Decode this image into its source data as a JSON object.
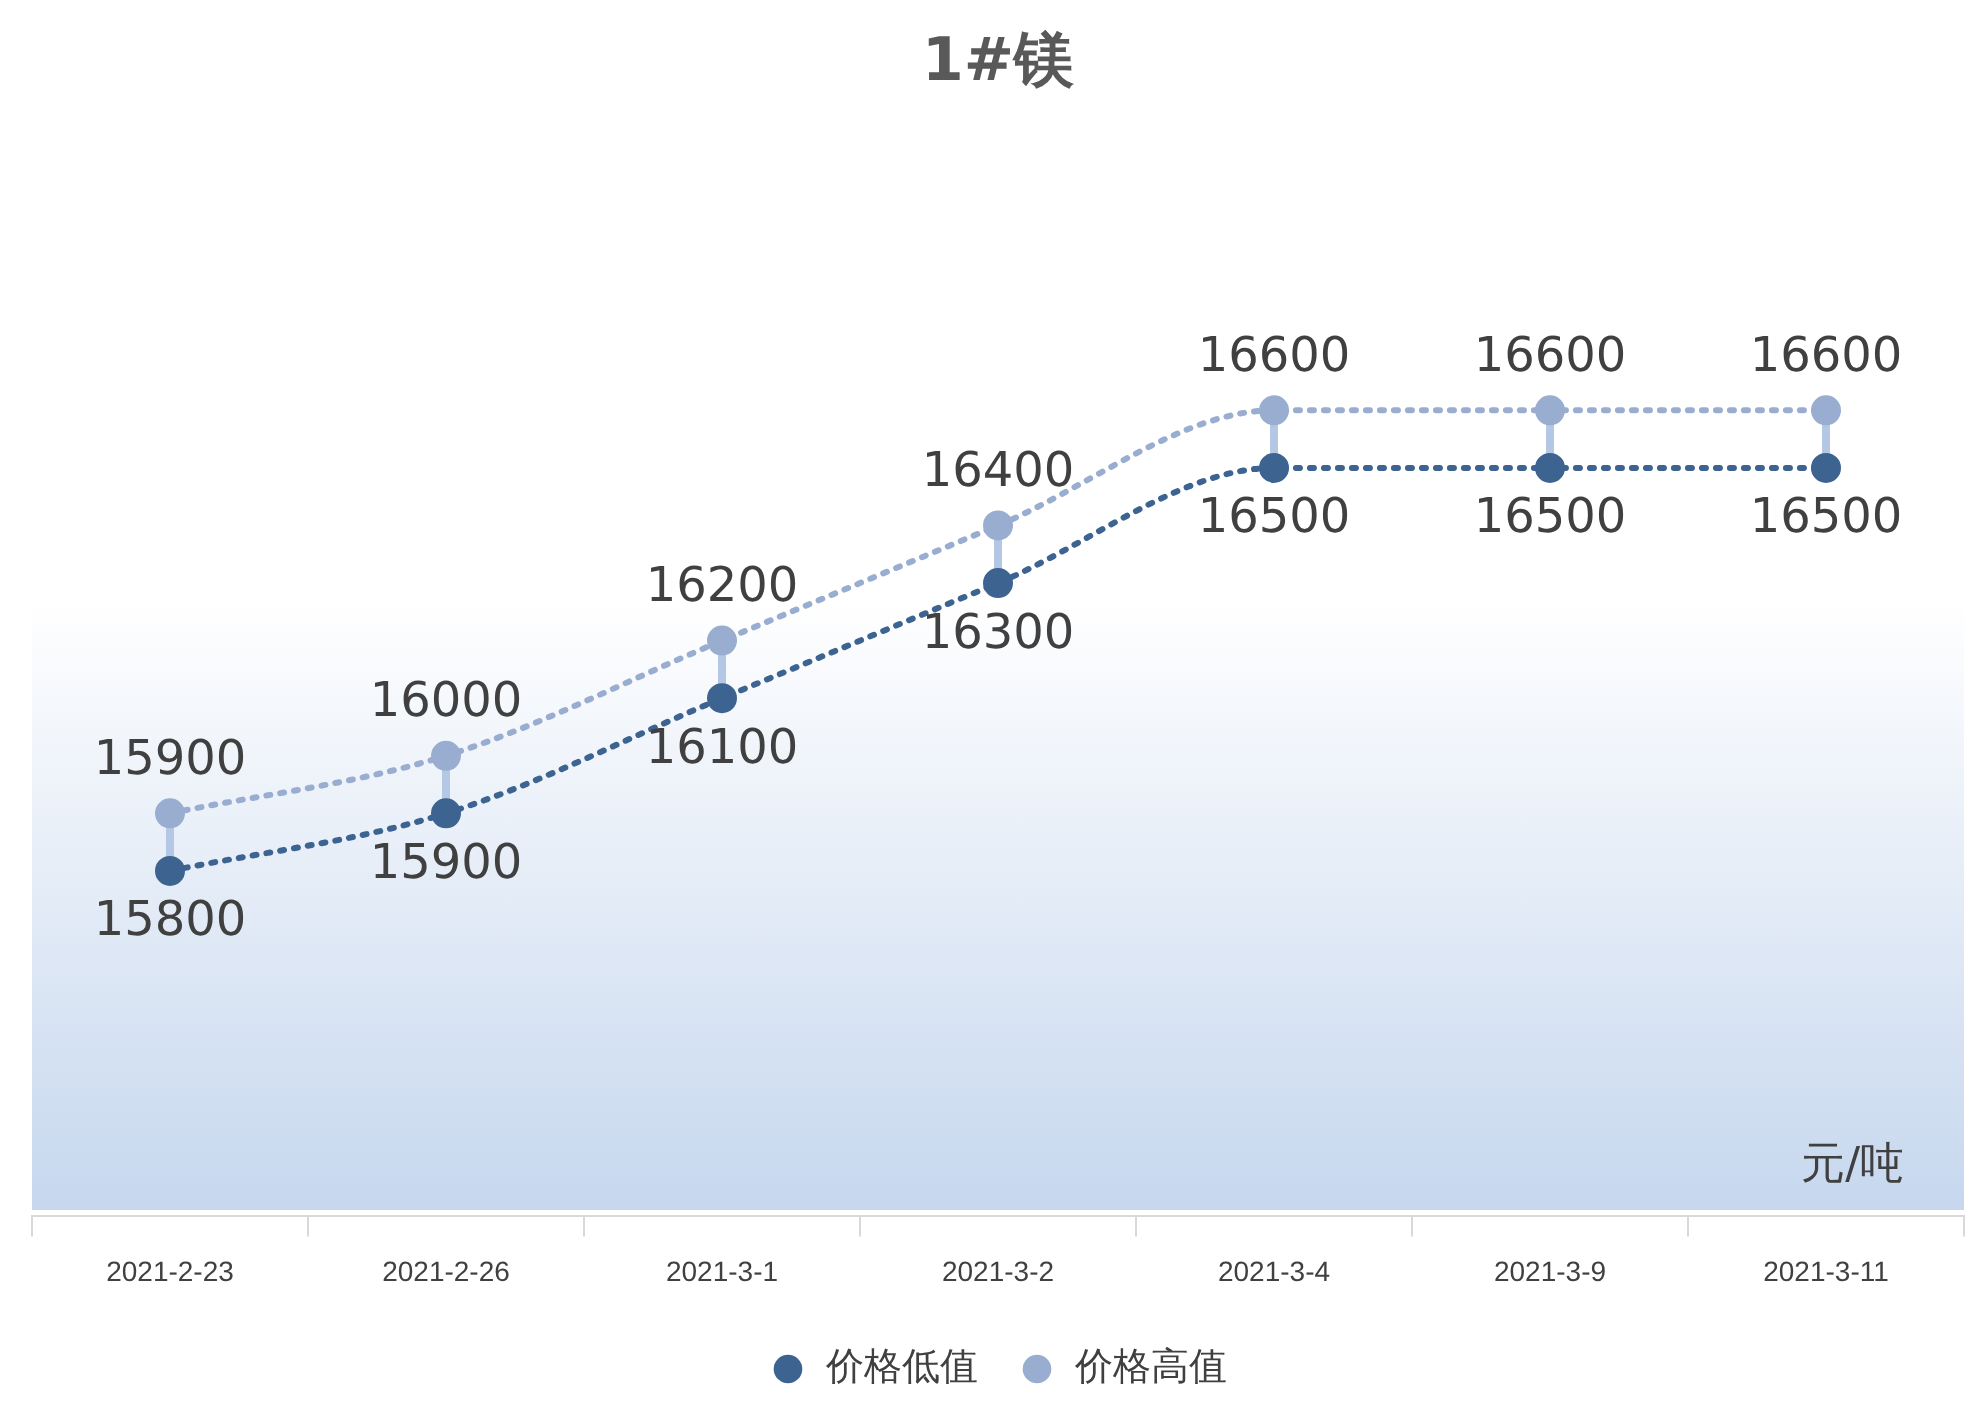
{
  "chart_data": {
    "type": "line",
    "title": "1#镁",
    "annotations": [
      "元/吨"
    ],
    "categories": [
      "2021-2-23",
      "2021-2-26",
      "2021-3-1",
      "2021-3-2",
      "2021-3-4",
      "2021-3-9",
      "2021-3-11"
    ],
    "series": [
      {
        "name": "价格低值",
        "color": "#3d6391",
        "values": [
          15800,
          15900,
          16100,
          16300,
          16500,
          16500,
          16500
        ]
      },
      {
        "name": "价格高值",
        "color": "#98add0",
        "values": [
          15900,
          16000,
          16200,
          16400,
          16600,
          16600,
          16600
        ]
      }
    ],
    "tick_labels": "x",
    "grid": false,
    "legend": "bottom",
    "marker": "circle",
    "line_style": "dotted",
    "data_labels": true
  }
}
